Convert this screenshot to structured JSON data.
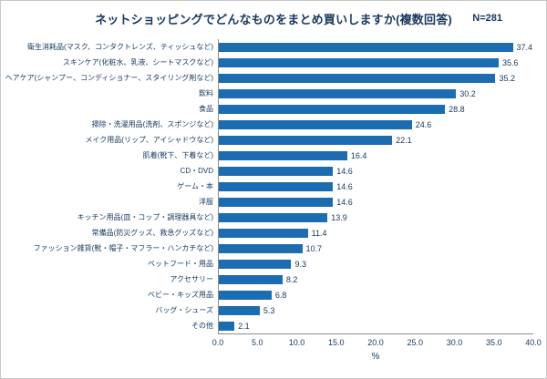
{
  "header": {
    "title": "ネットショッピングでどんなものをまとめ買いしますか(複数回答)",
    "sample_size": "N=281"
  },
  "chart_data": {
    "type": "bar",
    "orientation": "horizontal",
    "title": "ネットショッピングでどんなものをまとめ買いしますか(複数回答)",
    "sample_size": "N=281",
    "categories": [
      "衛生消耗品(マスク、コンタクトレンズ、ティッシュなど)",
      "スキンケア(化粧水、乳液、シートマスクなど)",
      "ヘアケア(シャンプー、コンディショナー、スタイリング剤など)",
      "飲料",
      "食品",
      "掃除・洗濯用品(洗剤、スポンジなど)",
      "メイク用品(リップ、アイシャドウなど)",
      "肌着(靴下、下着など)",
      "CD・DVD",
      "ゲーム・本",
      "洋服",
      "キッチン用品(皿・コップ・調理器具など)",
      "常備品(防災グッズ、救急グッズなど)",
      "ファッション雑貨(靴・帽子・マフラー・ハンカチなど)",
      "ペットフード・用品",
      "アクセサリー",
      "ベビー・キッズ用品",
      "バッグ・シューズ",
      "その他"
    ],
    "values": [
      37.4,
      35.6,
      35.2,
      30.2,
      28.8,
      24.6,
      22.1,
      16.4,
      14.6,
      14.6,
      14.6,
      13.9,
      11.4,
      10.7,
      9.3,
      8.2,
      6.8,
      5.3,
      2.1
    ],
    "xlim": [
      0,
      40
    ],
    "x_ticks": [
      "0.0",
      "5.0",
      "10.0",
      "15.0",
      "20.0",
      "25.0",
      "30.0",
      "35.0",
      "40.0"
    ],
    "xlabel": "%",
    "bar_color": "#1b6cb0",
    "text_color": "#17375e",
    "grid": false,
    "legend": "none"
  }
}
